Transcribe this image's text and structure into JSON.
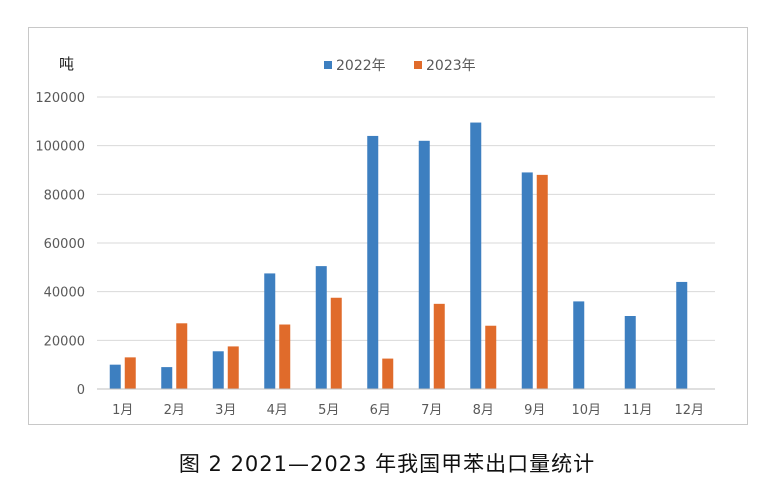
{
  "caption": "图 2  2021—2023 年我国甲苯出口量统计",
  "chart_data": {
    "type": "bar",
    "title": "",
    "ylabel": "吨",
    "xlabel": "",
    "ylim": [
      0,
      120000
    ],
    "yticks": [
      "0",
      "20000",
      "40000",
      "60000",
      "80000",
      "100000",
      "120000"
    ],
    "grid": true,
    "legend_position": "top",
    "categories": [
      "1月",
      "2月",
      "3月",
      "4月",
      "5月",
      "6月",
      "7月",
      "8月",
      "9月",
      "10月",
      "11月",
      "12月"
    ],
    "series": [
      {
        "name": "2022年",
        "color": "#3d7fc0",
        "values": [
          10000,
          9000,
          15500,
          47500,
          50500,
          104000,
          102000,
          109500,
          89000,
          36000,
          30000,
          44000
        ]
      },
      {
        "name": "2023年",
        "color": "#e06b2b",
        "values": [
          13000,
          27000,
          17500,
          26500,
          37500,
          12500,
          35000,
          26000,
          88000,
          null,
          null,
          null
        ]
      }
    ]
  }
}
